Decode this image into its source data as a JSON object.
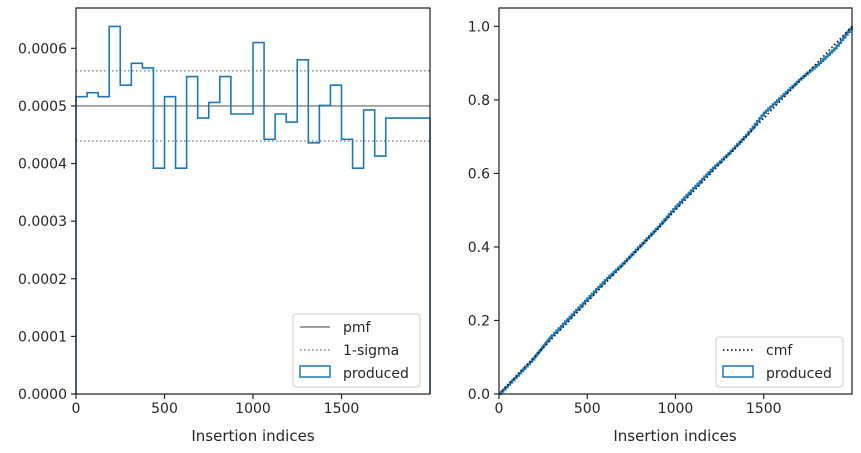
{
  "chart_data": [
    {
      "type": "histogram-step",
      "xlabel": "Insertion indices",
      "ylabel": "",
      "xlim": [
        0,
        2000
      ],
      "ylim": [
        0,
        0.00067
      ],
      "xticks": [
        0,
        500,
        1000,
        1500
      ],
      "xtick_labels": [
        "0",
        "500",
        "1000",
        "1500"
      ],
      "yticks": [
        0,
        0.0001,
        0.0002,
        0.0003,
        0.0004,
        0.0005,
        0.0006
      ],
      "ytick_labels": [
        "0.0000",
        "0.0001",
        "0.0002",
        "0.0003",
        "0.0004",
        "0.0005",
        "0.0006"
      ],
      "bin_width": 62.5,
      "series": [
        {
          "name": "produced",
          "color": "#1f77b4",
          "bin_starts": [
            0,
            62.5,
            125,
            187.5,
            250,
            312.5,
            375,
            437.5,
            500,
            562.5,
            625,
            687.5,
            750,
            812.5,
            875,
            937.5,
            1000,
            1062.5,
            1125,
            1187.5,
            1250,
            1312.5,
            1375,
            1437.5,
            1500,
            1562.5,
            1625,
            1687.5,
            1750,
            1812.5,
            1875,
            1937.5
          ],
          "values": [
            0.000516,
            0.000523,
            0.000516,
            0.000638,
            0.000536,
            0.000574,
            0.000566,
            0.000392,
            0.000516,
            0.000392,
            0.000551,
            0.000479,
            0.000506,
            0.000551,
            0.000486,
            0.000486,
            0.00061,
            0.000442,
            0.000486,
            0.000472,
            0.00058,
            0.000436,
            0.000501,
            0.000536,
            0.000442,
            0.000392,
            0.000493,
            0.000413,
            0.000479,
            0.000479,
            0.000479,
            0.000479
          ]
        }
      ],
      "hlines": [
        {
          "name": "pmf",
          "y": 0.0005,
          "color": "#808080",
          "style": "solid"
        },
        {
          "name": "1-sigma",
          "y": 0.000561,
          "color": "#808080",
          "style": "dotted"
        },
        {
          "name": "1-sigma",
          "y": 0.000439,
          "color": "#808080",
          "style": "dotted"
        }
      ],
      "legend": {
        "position": "bottom-right",
        "entries": [
          "pmf",
          "1-sigma",
          "produced"
        ]
      }
    },
    {
      "type": "line",
      "xlabel": "Insertion indices",
      "ylabel": "",
      "xlim": [
        0,
        2000
      ],
      "ylim": [
        0,
        1.05
      ],
      "xticks": [
        0,
        500,
        1000,
        1500
      ],
      "xtick_labels": [
        "0",
        "500",
        "1000",
        "1500"
      ],
      "yticks": [
        0,
        0.2,
        0.4,
        0.6,
        0.8,
        1.0
      ],
      "ytick_labels": [
        "0.0",
        "0.2",
        "0.4",
        "0.6",
        "0.8",
        "1.0"
      ],
      "series": [
        {
          "name": "cmf",
          "style": "dotted",
          "color": "#000000",
          "x": [
            0,
            2000
          ],
          "y": [
            0,
            1.0
          ]
        },
        {
          "name": "produced",
          "style": "step",
          "color": "#1f77b4",
          "x": [
            0,
            100,
            200,
            250,
            300,
            400,
            500,
            600,
            700,
            800,
            900,
            1000,
            1100,
            1200,
            1300,
            1400,
            1500,
            1600,
            1700,
            1800,
            1900,
            2000
          ],
          "y": [
            0,
            0.05,
            0.1,
            0.13,
            0.16,
            0.21,
            0.26,
            0.31,
            0.355,
            0.405,
            0.455,
            0.51,
            0.56,
            0.61,
            0.655,
            0.705,
            0.765,
            0.81,
            0.855,
            0.895,
            0.94,
            1.0
          ]
        }
      ],
      "legend": {
        "position": "bottom-right",
        "entries": [
          "cmf",
          "produced"
        ]
      }
    }
  ]
}
